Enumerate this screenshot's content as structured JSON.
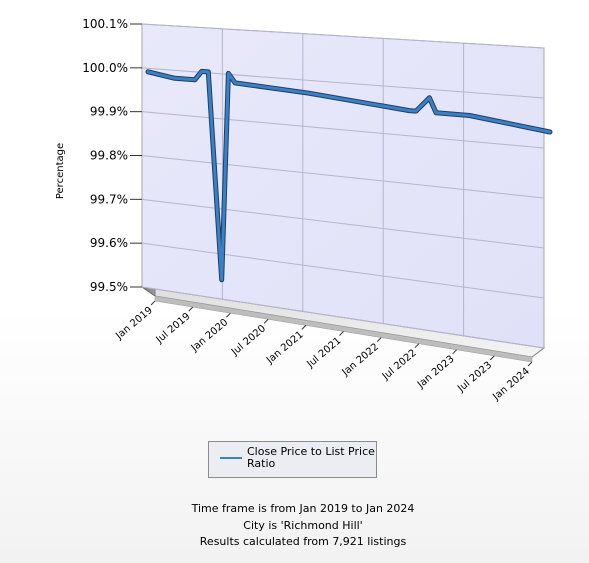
{
  "chart_data": {
    "type": "line",
    "ylabel": "Percentage",
    "y_ticks": [
      "100.1%",
      "100.0%",
      "99.9%",
      "99.8%",
      "99.7%",
      "99.6%",
      "99.5%"
    ],
    "y_tick_values": [
      100.1,
      100.0,
      99.9,
      99.8,
      99.7,
      99.6,
      99.5
    ],
    "ylim": [
      99.5,
      100.1
    ],
    "x_ticks": [
      "Jan 2019",
      "Jul 2019",
      "Jan 2020",
      "Jul 2020",
      "Jan 2021",
      "Jul 2021",
      "Jan 2022",
      "Jul 2022",
      "Jan 2023",
      "Jul 2023",
      "Jan 2024"
    ],
    "x_tick_dates": [
      "2019-01",
      "2019-07",
      "2020-01",
      "2020-07",
      "2021-01",
      "2021-07",
      "2022-01",
      "2022-07",
      "2023-01",
      "2023-07",
      "2024-01"
    ],
    "grid": true,
    "legend_position": "bottom",
    "series": [
      {
        "name": "Close Price to List Price Ratio",
        "color": "#3b7fc4",
        "points": [
          {
            "x": "2019-01",
            "y": 100.0
          },
          {
            "x": "2019-05",
            "y": 99.99
          },
          {
            "x": "2019-08",
            "y": 99.99
          },
          {
            "x": "2019-09",
            "y": 100.01
          },
          {
            "x": "2019-10",
            "y": 100.01
          },
          {
            "x": "2019-12",
            "y": 99.55
          },
          {
            "x": "2020-01",
            "y": 100.01
          },
          {
            "x": "2020-02",
            "y": 99.99
          },
          {
            "x": "2021-01",
            "y": 99.98
          },
          {
            "x": "2022-04",
            "y": 99.96
          },
          {
            "x": "2022-05",
            "y": 99.96
          },
          {
            "x": "2022-07",
            "y": 99.99
          },
          {
            "x": "2022-08",
            "y": 99.96
          },
          {
            "x": "2023-01",
            "y": 99.96
          },
          {
            "x": "2024-01",
            "y": 99.94
          }
        ]
      }
    ]
  },
  "legend": {
    "label": "Close Price to List Price Ratio"
  },
  "footer": {
    "line1": "Time frame is from Jan 2019 to Jan 2024",
    "line2": "City is 'Richmond Hill'",
    "line3": "Results calculated from 7,921 listings"
  }
}
